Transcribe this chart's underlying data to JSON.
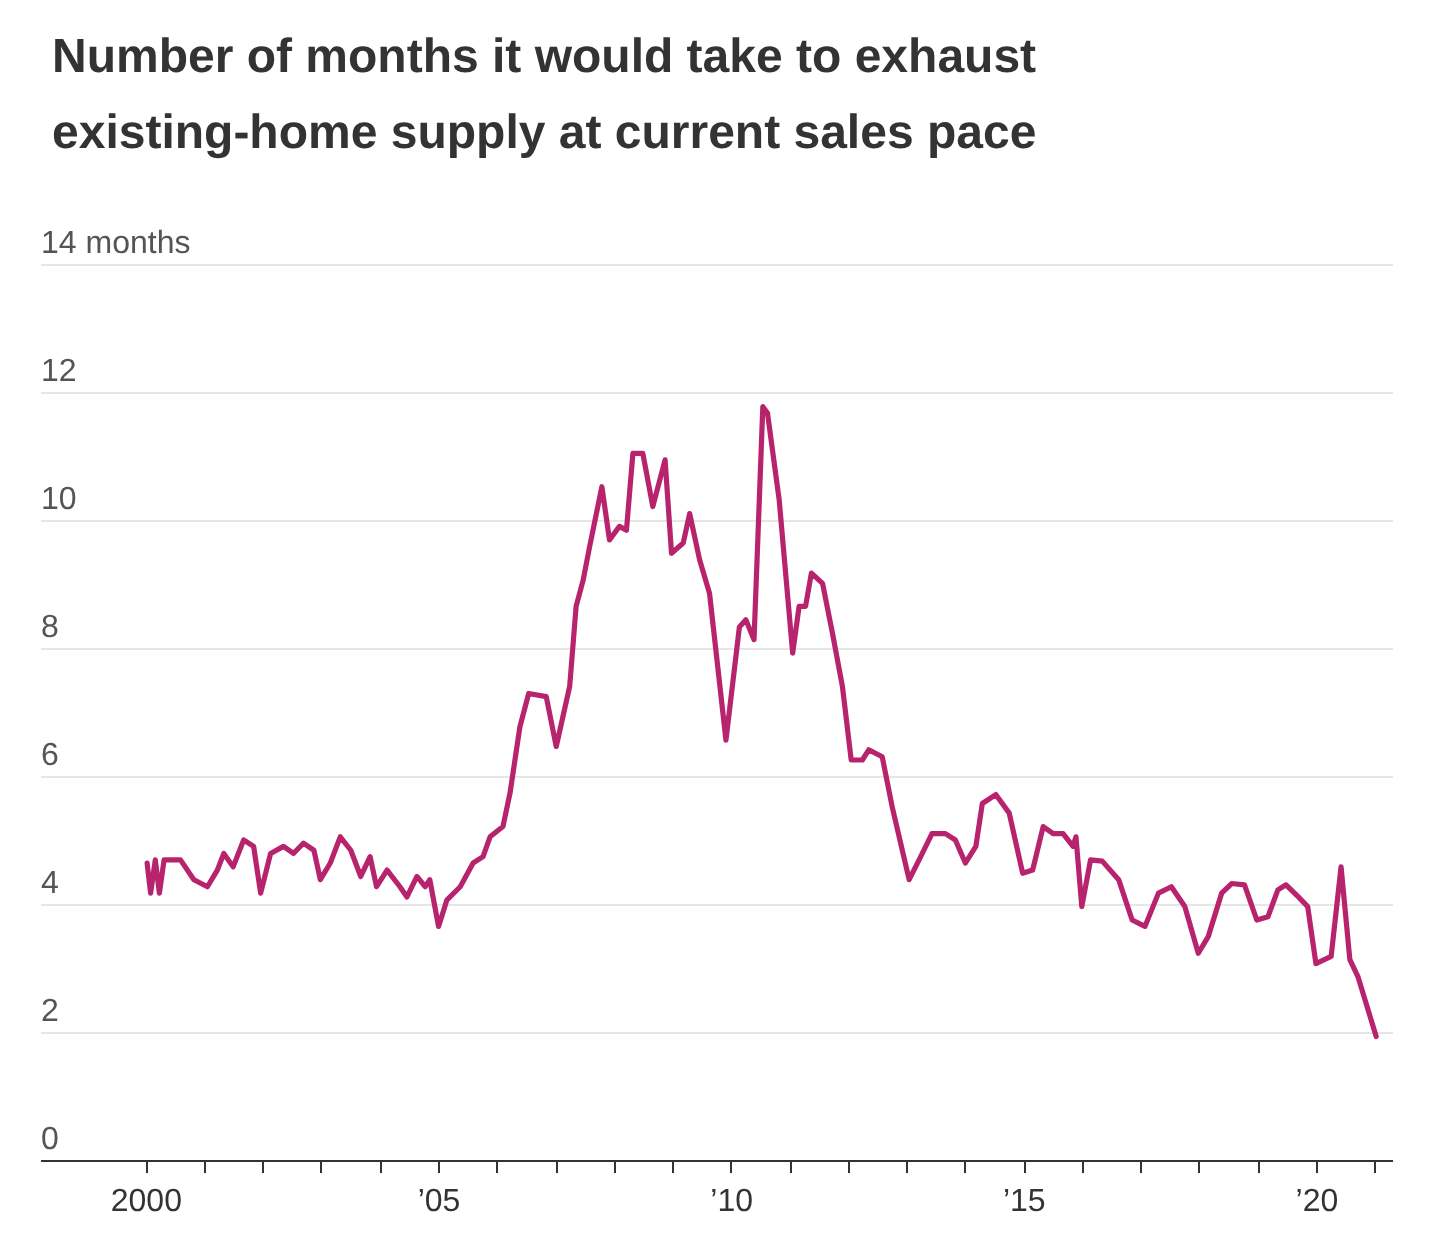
{
  "chart_data": {
    "type": "line",
    "title": "Number of months it would take to exhaust existing-home supply at current sales pace",
    "x": [
      2000.03,
      2000.09,
      2000.17,
      2000.24,
      2000.32,
      2000.6,
      2000.83,
      2001.06,
      2001.23,
      2001.34,
      2001.5,
      2001.68,
      2001.85,
      2001.97,
      2002.14,
      2002.36,
      2002.53,
      2002.7,
      2002.88,
      2002.99,
      2003.16,
      2003.33,
      2003.51,
      2003.68,
      2003.84,
      2003.95,
      2004.13,
      2004.35,
      2004.47,
      2004.64,
      2004.78,
      2004.86,
      2005.01,
      2005.15,
      2005.38,
      2005.6,
      2005.77,
      2005.89,
      2006.11,
      2006.23,
      2006.4,
      2006.55,
      2006.85,
      2007.02,
      2007.25,
      2007.36,
      2007.48,
      2007.59,
      2007.8,
      2007.93,
      2008.1,
      2008.22,
      2008.33,
      2008.5,
      2008.67,
      2008.88,
      2008.99,
      2009.19,
      2009.3,
      2009.47,
      2009.64,
      2009.92,
      2010.15,
      2010.26,
      2010.4,
      2010.55,
      2010.63,
      2010.83,
      2011.06,
      2011.17,
      2011.28,
      2011.38,
      2011.57,
      2011.74,
      2011.91,
      2012.06,
      2012.25,
      2012.36,
      2012.59,
      2012.76,
      2013.05,
      2013.22,
      2013.44,
      2013.67,
      2013.84,
      2014.01,
      2014.19,
      2014.3,
      2014.53,
      2014.76,
      2014.99,
      2015.16,
      2015.34,
      2015.51,
      2015.68,
      2015.85,
      2015.9,
      2016.0,
      2016.15,
      2016.35,
      2016.63,
      2016.86,
      2017.08,
      2017.31,
      2017.53,
      2017.76,
      2017.99,
      2018.16,
      2018.39,
      2018.56,
      2018.78,
      2018.99,
      2019.18,
      2019.35,
      2019.49,
      2019.7,
      2019.86,
      2020.0,
      2020.26,
      2020.43,
      2020.58,
      2020.72,
      2021.03
    ],
    "series": [
      {
        "color": "#b8236e",
        "values": [
          4.64,
          4.17,
          4.69,
          4.17,
          4.69,
          4.69,
          4.38,
          4.27,
          4.53,
          4.79,
          4.58,
          5.0,
          4.9,
          4.17,
          4.79,
          4.9,
          4.79,
          4.95,
          4.84,
          4.38,
          4.64,
          5.05,
          4.84,
          4.43,
          4.74,
          4.27,
          4.53,
          4.27,
          4.11,
          4.43,
          4.27,
          4.38,
          3.65,
          4.06,
          4.27,
          4.64,
          4.74,
          5.05,
          5.21,
          5.73,
          6.77,
          7.29,
          7.24,
          6.46,
          7.4,
          8.65,
          9.06,
          9.58,
          10.52,
          9.69,
          9.9,
          9.84,
          11.04,
          11.04,
          10.21,
          10.94,
          9.48,
          9.64,
          10.1,
          9.38,
          8.85,
          6.56,
          8.33,
          8.44,
          8.13,
          11.77,
          11.67,
          10.31,
          7.92,
          8.65,
          8.65,
          9.17,
          9.01,
          8.23,
          7.4,
          6.25,
          6.25,
          6.41,
          6.3,
          5.52,
          4.38,
          4.69,
          5.1,
          5.1,
          5.0,
          4.64,
          4.9,
          5.57,
          5.71,
          5.42,
          4.48,
          4.53,
          5.21,
          5.1,
          5.1,
          4.9,
          5.05,
          3.96,
          4.69,
          4.67,
          4.38,
          3.75,
          3.65,
          4.17,
          4.27,
          3.96,
          3.23,
          3.49,
          4.17,
          4.32,
          4.3,
          3.75,
          3.8,
          4.22,
          4.3,
          4.11,
          3.96,
          3.07,
          3.18,
          4.58,
          3.13,
          2.86,
          1.93
        ]
      }
    ],
    "xlim": [
      1998.2,
      2021.3
    ],
    "xticks": [
      {
        "value": 2000,
        "label": "2000"
      },
      {
        "value": 2001,
        "label": null
      },
      {
        "value": 2002,
        "label": null
      },
      {
        "value": 2003,
        "label": null
      },
      {
        "value": 2004,
        "label": null
      },
      {
        "value": 2005,
        "label": "’05"
      },
      {
        "value": 2006,
        "label": null
      },
      {
        "value": 2007,
        "label": null
      },
      {
        "value": 2008,
        "label": null
      },
      {
        "value": 2009,
        "label": null
      },
      {
        "value": 2010,
        "label": "’10"
      },
      {
        "value": 2011,
        "label": null
      },
      {
        "value": 2012,
        "label": null
      },
      {
        "value": 2013,
        "label": null
      },
      {
        "value": 2014,
        "label": null
      },
      {
        "value": 2015,
        "label": "’15"
      },
      {
        "value": 2016,
        "label": null
      },
      {
        "value": 2017,
        "label": null
      },
      {
        "value": 2018,
        "label": null
      },
      {
        "value": 2019,
        "label": null
      },
      {
        "value": 2020,
        "label": "’20"
      },
      {
        "value": 2021,
        "label": null
      }
    ],
    "ylim": [
      0,
      14
    ],
    "yticks": [
      0,
      2,
      4,
      6,
      8,
      10,
      12,
      {
        "value": 14,
        "label": "14 months"
      }
    ],
    "grid": "y"
  }
}
